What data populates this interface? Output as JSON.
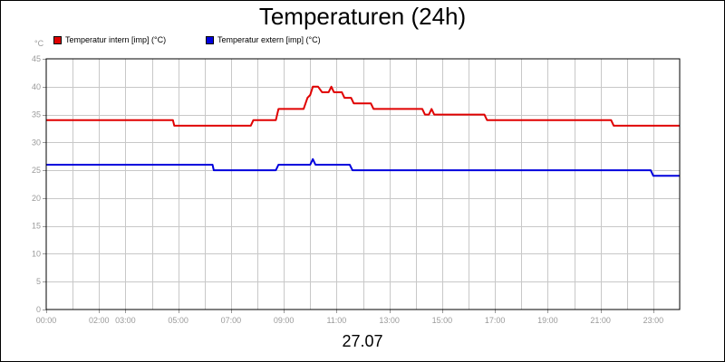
{
  "chart_data": {
    "type": "line",
    "title": "Temperaturen (24h)",
    "date_label": "27.07",
    "unit_label": "°C",
    "ylim": [
      0,
      45
    ],
    "y_ticks": [
      "0",
      "5",
      "10",
      "15",
      "20",
      "25",
      "30",
      "35",
      "40",
      "45"
    ],
    "xlim": [
      0,
      24
    ],
    "x_ticks": [
      {
        "hour": 0,
        "label": "00:00"
      },
      {
        "hour": 2,
        "label": "02:00"
      },
      {
        "hour": 3,
        "label": "03:00"
      },
      {
        "hour": 5,
        "label": "05:00"
      },
      {
        "hour": 7,
        "label": "07:00"
      },
      {
        "hour": 9,
        "label": "09:00"
      },
      {
        "hour": 11,
        "label": "11:00"
      },
      {
        "hour": 13,
        "label": "13:00"
      },
      {
        "hour": 15,
        "label": "15:00"
      },
      {
        "hour": 17,
        "label": "17:00"
      },
      {
        "hour": 19,
        "label": "19:00"
      },
      {
        "hour": 21,
        "label": "21:00"
      },
      {
        "hour": 23,
        "label": "23:00"
      }
    ],
    "grid": true,
    "legend_position": "top-left",
    "series": [
      {
        "name": "Temperatur intern [imp] (°C)",
        "color": "#e00000",
        "points": [
          [
            0,
            34
          ],
          [
            4.8,
            34
          ],
          [
            4.85,
            33
          ],
          [
            7.75,
            33
          ],
          [
            7.85,
            34
          ],
          [
            8.7,
            34
          ],
          [
            8.8,
            36
          ],
          [
            9.75,
            36
          ],
          [
            9.9,
            38
          ],
          [
            10,
            38.5
          ],
          [
            10.1,
            40
          ],
          [
            10.3,
            40
          ],
          [
            10.45,
            39
          ],
          [
            10.7,
            39
          ],
          [
            10.8,
            40
          ],
          [
            10.9,
            39
          ],
          [
            11.2,
            39
          ],
          [
            11.3,
            38
          ],
          [
            11.55,
            38
          ],
          [
            11.65,
            37
          ],
          [
            12.3,
            37
          ],
          [
            12.4,
            36
          ],
          [
            14.25,
            36
          ],
          [
            14.35,
            35
          ],
          [
            14.5,
            35
          ],
          [
            14.6,
            36
          ],
          [
            14.7,
            35
          ],
          [
            16.6,
            35
          ],
          [
            16.7,
            34
          ],
          [
            21.4,
            34
          ],
          [
            21.5,
            33
          ],
          [
            24,
            33
          ]
        ]
      },
      {
        "name": "Temperatur extern [imp] (°C)",
        "color": "#0000dd",
        "points": [
          [
            0,
            26
          ],
          [
            6.3,
            26
          ],
          [
            6.35,
            25
          ],
          [
            8.7,
            25
          ],
          [
            8.8,
            26
          ],
          [
            10,
            26
          ],
          [
            10.1,
            27
          ],
          [
            10.2,
            26
          ],
          [
            11.5,
            26
          ],
          [
            11.6,
            25
          ],
          [
            22.9,
            25
          ],
          [
            23,
            24
          ],
          [
            24,
            24
          ]
        ]
      }
    ]
  }
}
